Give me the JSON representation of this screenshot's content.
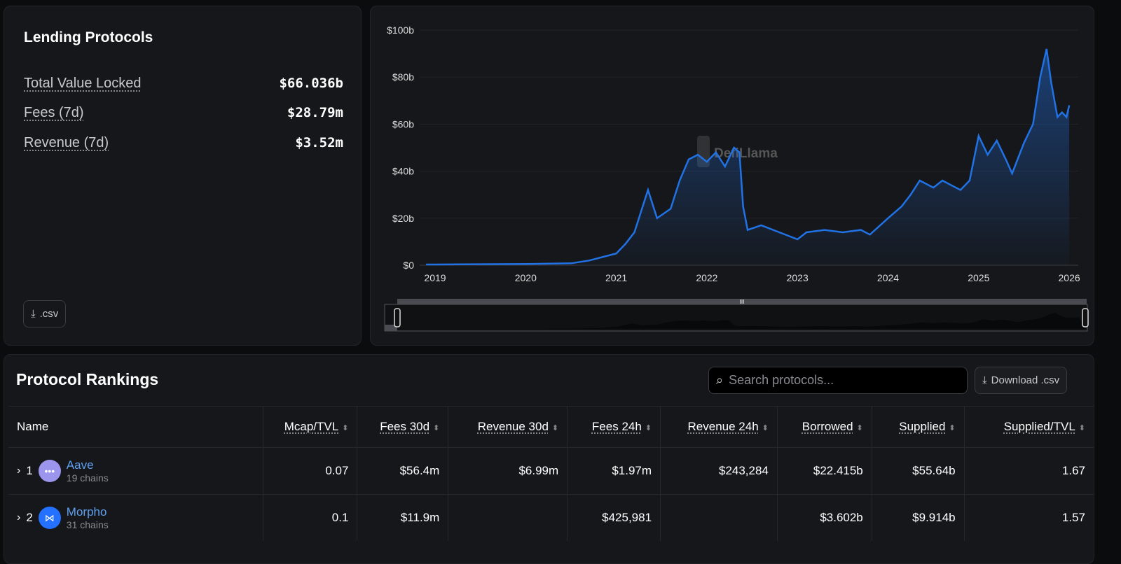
{
  "summary": {
    "title": "Lending Protocols",
    "stats": [
      {
        "label": "Total Value Locked",
        "value": "$66.036b"
      },
      {
        "label": "Fees (7d)",
        "value": "$28.79m"
      },
      {
        "label": "Revenue (7d)",
        "value": "$3.52m"
      }
    ],
    "csv_label": ".csv"
  },
  "chart_data": {
    "type": "area",
    "title": "",
    "watermark": "DefiLlama",
    "ylabel": "TVL",
    "ylim": [
      0,
      100
    ],
    "yticks": [
      "$0",
      "$20b",
      "$40b",
      "$60b",
      "$80b",
      "$100b"
    ],
    "ytick_values": [
      0,
      20,
      40,
      60,
      80,
      100
    ],
    "xticks": [
      "2019",
      "2020",
      "2021",
      "2022",
      "2023",
      "2024",
      "2025",
      "2026"
    ],
    "color": "#2172e5",
    "series": [
      {
        "name": "TVL",
        "x": [
          2018.9,
          2019.0,
          2020.0,
          2020.5,
          2020.7,
          2021.0,
          2021.1,
          2021.2,
          2021.3,
          2021.35,
          2021.45,
          2021.6,
          2021.7,
          2021.8,
          2021.9,
          2022.0,
          2022.1,
          2022.2,
          2022.3,
          2022.36,
          2022.4,
          2022.45,
          2022.6,
          2022.8,
          2023.0,
          2023.1,
          2023.3,
          2023.5,
          2023.7,
          2023.8,
          2024.0,
          2024.15,
          2024.25,
          2024.35,
          2024.5,
          2024.6,
          2024.7,
          2024.8,
          2024.9,
          2025.0,
          2025.1,
          2025.2,
          2025.3,
          2025.37,
          2025.5,
          2025.6,
          2025.68,
          2025.75,
          2025.8,
          2025.87,
          2025.92,
          2025.97,
          2026.0
        ],
        "y": [
          0.3,
          0.3,
          0.5,
          0.8,
          2,
          5,
          9,
          14,
          26,
          32,
          20,
          24,
          36,
          45,
          47,
          44,
          48,
          42,
          50,
          48,
          25,
          15,
          17,
          14,
          11,
          14,
          15,
          14,
          15,
          13,
          20,
          25,
          30,
          36,
          33,
          36,
          34,
          32,
          36,
          55,
          47,
          53,
          45,
          39,
          52,
          60,
          80,
          92,
          78,
          63,
          65,
          63,
          68
        ]
      }
    ]
  },
  "brush": {
    "handle": "III"
  },
  "rankings": {
    "title": "Protocol Rankings",
    "search_placeholder": "Search protocols...",
    "download_label": "Download .csv",
    "columns": [
      "Name",
      "Mcap/TVL",
      "Fees 30d",
      "Revenue 30d",
      "Fees 24h",
      "Revenue 24h",
      "Borrowed",
      "Supplied",
      "Supplied/TVL"
    ],
    "rows": [
      {
        "rank": "1",
        "name": "Aave",
        "chains": "19 chains",
        "cells": [
          "0.07",
          "$56.4m",
          "$6.99m",
          "$1.97m",
          "$243,284",
          "$22.415b",
          "$55.64b",
          "1.67"
        ],
        "logo_color": "#9c95ee"
      },
      {
        "rank": "2",
        "name": "Morpho",
        "chains": "31 chains",
        "cells": [
          "0.1",
          "$11.9m",
          "",
          "$425,981",
          "",
          "$3.602b",
          "$9.914b",
          "1.57"
        ],
        "logo_color": "#2470ff"
      }
    ]
  }
}
